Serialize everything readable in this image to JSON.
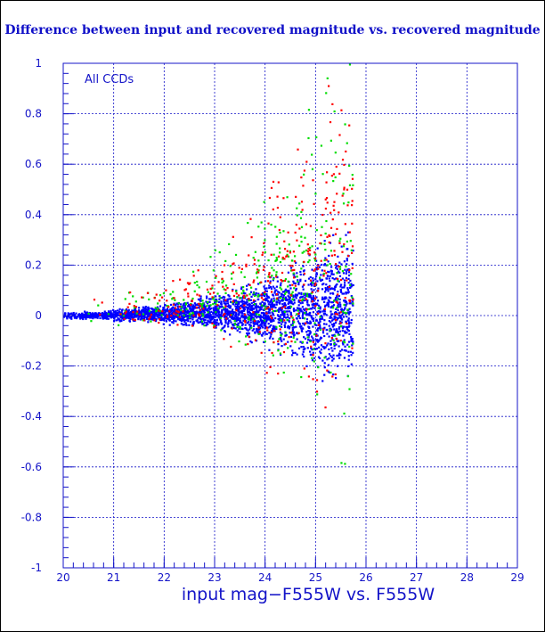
{
  "chart_data": {
    "type": "scatter",
    "title": "Difference between input and recovered magnitude vs. recovered magnitude",
    "xlabel": "input mag−F555W vs. F555W",
    "ylabel": "",
    "annotation": "All CCDs",
    "xlim": [
      20,
      29
    ],
    "ylim": [
      -1,
      1
    ],
    "x_ticks": [
      20,
      21,
      22,
      23,
      24,
      25,
      26,
      27,
      28,
      29
    ],
    "y_ticks": [
      1,
      0.8,
      0.6,
      0.4,
      0.2,
      0,
      -0.2,
      -0.4,
      -0.6,
      -0.8,
      -1
    ],
    "grid": true,
    "legend": "none",
    "series": [
      {
        "color": "#0000ff",
        "description": "dense cloud; spread widens from ~0.02 at x=20 to ~0.35 at x=25.5, cutoff near x=25.7",
        "x": [
          20.2,
          20.6,
          21.0,
          21.4,
          21.8,
          22.2,
          22.6,
          23.0,
          23.4,
          23.8,
          24.2,
          24.6,
          25.0,
          25.3,
          25.6
        ],
        "y_low": [
          -0.02,
          -0.02,
          -0.03,
          -0.03,
          -0.04,
          -0.05,
          -0.06,
          -0.08,
          -0.1,
          -0.13,
          -0.17,
          -0.22,
          -0.28,
          -0.33,
          -0.35
        ],
        "y_high": [
          0.02,
          0.02,
          0.03,
          0.04,
          0.05,
          0.06,
          0.08,
          0.1,
          0.12,
          0.15,
          0.2,
          0.26,
          0.33,
          0.38,
          0.4
        ]
      },
      {
        "color": "#00dd00",
        "description": "scattered points over the same envelope with larger outliers",
        "x": [
          21.5,
          22.5,
          23.5,
          24.5,
          25.0,
          25.5
        ],
        "y_low": [
          -0.05,
          -0.08,
          -0.15,
          -0.3,
          -0.45,
          -0.6
        ],
        "y_high": [
          0.1,
          0.15,
          0.3,
          0.55,
          0.8,
          0.9
        ]
      },
      {
        "color": "#ff0000",
        "description": "scattered points over the same envelope with larger outliers",
        "x": [
          21.5,
          22.5,
          23.5,
          24.5,
          25.0,
          25.5
        ],
        "y_low": [
          -0.05,
          -0.08,
          -0.15,
          -0.3,
          -0.45,
          -0.5
        ],
        "y_high": [
          0.1,
          0.15,
          0.3,
          0.55,
          0.85,
          1.0
        ]
      }
    ]
  }
}
